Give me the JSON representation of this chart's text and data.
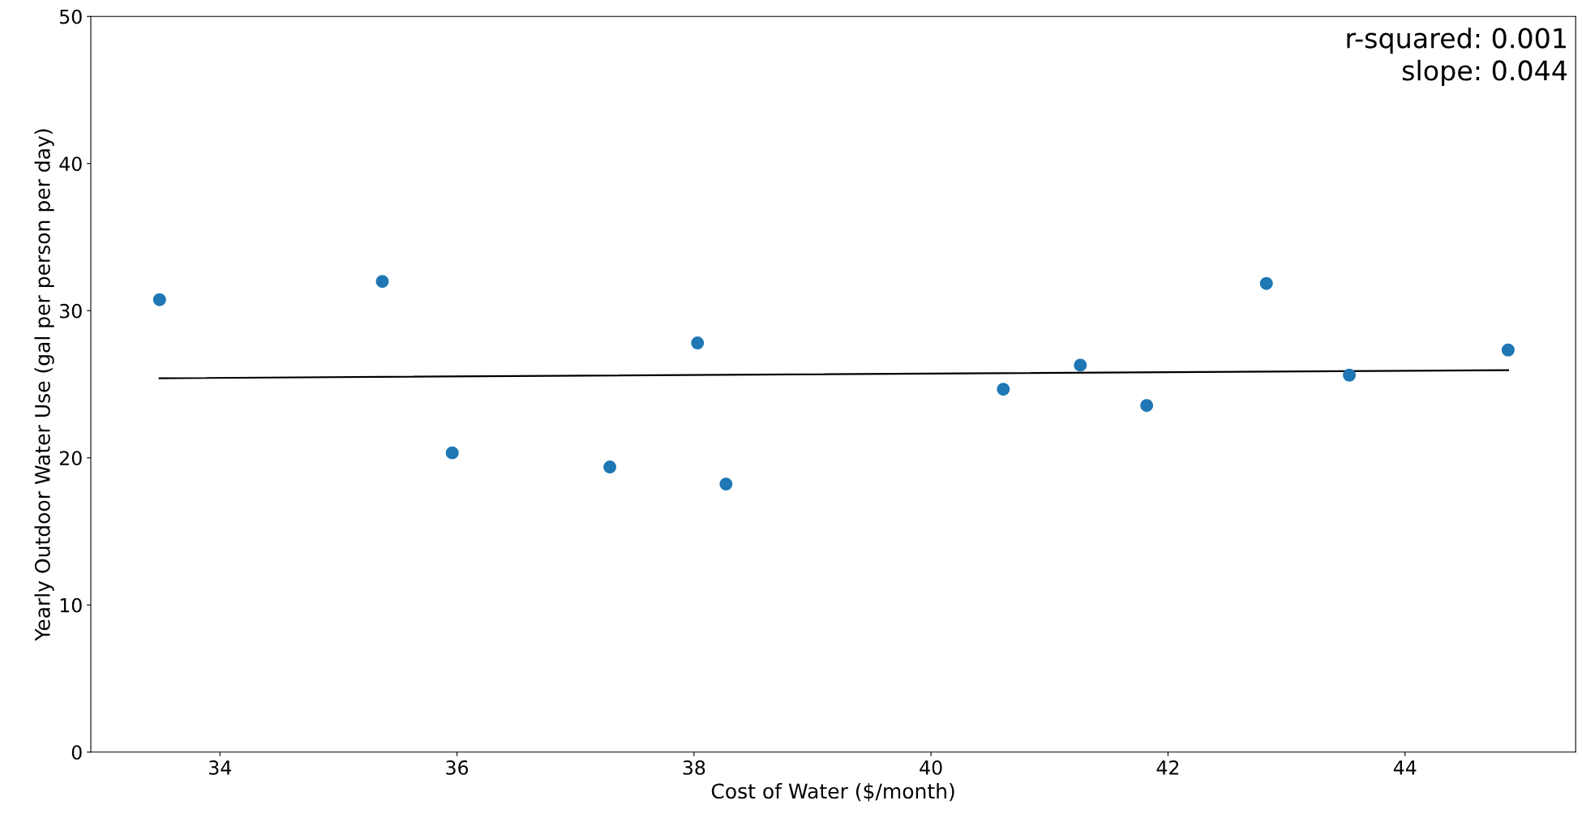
{
  "chart_data": {
    "type": "scatter",
    "xlabel": "Cost of Water ($/month)",
    "ylabel": "Yearly Outdoor Water Use (gal per person per day)",
    "xlim": [
      32.91,
      45.44
    ],
    "xticks": [
      34,
      36,
      38,
      40,
      42,
      44
    ],
    "ylim": [
      0,
      50
    ],
    "yticks": [
      0,
      10,
      20,
      30,
      40,
      50
    ],
    "grid": false,
    "annotations": [
      "r-squared: 0.001\nslope: 0.044"
    ],
    "series": [
      {
        "marker": "circle",
        "color": "#1f77b4",
        "x": [
          33.49,
          35.37,
          35.96,
          37.29,
          38.03,
          38.27,
          40.61,
          41.26,
          41.82,
          42.83,
          43.53,
          44.87
        ],
        "values": [
          30.75,
          31.99,
          20.34,
          19.38,
          27.81,
          18.22,
          24.66,
          26.3,
          23.56,
          31.85,
          25.62,
          27.33
        ]
      },
      {
        "type": "line",
        "marker": "none",
        "color": "#000000",
        "x": [
          33.49,
          44.87
        ],
        "values": [
          25.41,
          25.96
        ]
      }
    ]
  }
}
